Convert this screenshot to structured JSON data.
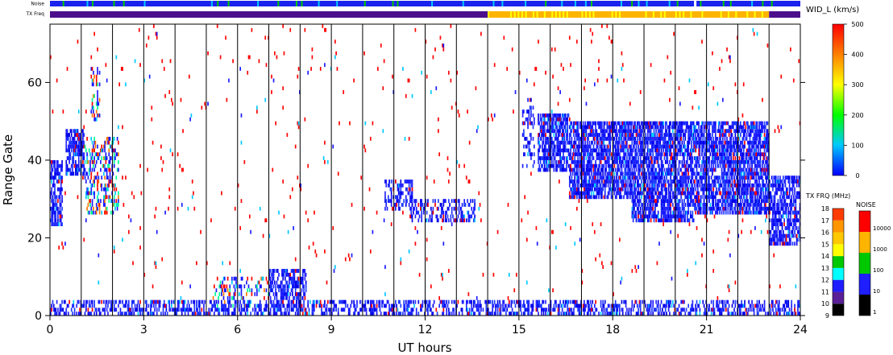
{
  "chart_data": {
    "type": "heatmap",
    "title": "",
    "xlabel": "UT hours",
    "ylabel": "Range Gate",
    "xlim": [
      0,
      24
    ],
    "ylim": [
      0,
      75
    ],
    "xticks": [
      "0",
      "3",
      "6",
      "9",
      "12",
      "15",
      "18",
      "21",
      "24"
    ],
    "yticks": [
      "0",
      "20",
      "40",
      "60"
    ],
    "grid_hours": [
      1,
      2,
      3,
      4,
      5,
      6,
      7,
      8,
      9,
      10,
      11,
      12,
      13,
      14,
      15,
      16,
      17,
      18,
      19,
      20,
      21,
      22,
      23
    ],
    "strip_labels": {
      "noise": "Noise",
      "txfreq": "TX Freq"
    },
    "noise_strip_color": "#1a22ee",
    "txfreq_strip": [
      {
        "from": 0,
        "to": 14,
        "color": "#4b0f8c"
      },
      {
        "from": 14,
        "to": 23,
        "color": "#ffb400"
      },
      {
        "from": 23,
        "to": 24,
        "color": "#4b0f8c"
      }
    ],
    "width_colorbar": {
      "label": "WID_L (km/s)",
      "range": [
        0,
        500
      ],
      "ticks": [
        "0",
        "100",
        "200",
        "300",
        "400",
        "500"
      ],
      "stops": [
        "#0000ff",
        "#00c8ff",
        "#00ff00",
        "#ffff00",
        "#ff8000",
        "#ff0000"
      ]
    },
    "txfreq_colorbar": {
      "label": "TX FRQ (MHz)",
      "ticks": [
        "9",
        "10",
        "11",
        "12",
        "13",
        "14",
        "15",
        "16",
        "17",
        "18"
      ],
      "colors": [
        "#000000",
        "#5a1f96",
        "#1e1eff",
        "#00ffff",
        "#00c800",
        "#ffff00",
        "#ffc800",
        "#ff9600",
        "#ff3c00"
      ]
    },
    "noise_colorbar": {
      "label": "NOISE",
      "ticks": [
        "1",
        "10",
        "100",
        "1000",
        "10000"
      ],
      "colors": [
        "#000000",
        "#1e1eff",
        "#00c800",
        "#ffb400",
        "#ff0000"
      ]
    },
    "scatter_regions": [
      {
        "t0": 0.0,
        "t1": 0.4,
        "g0": 23,
        "g1": 40,
        "density": 0.65,
        "color": "blue"
      },
      {
        "t0": 0.5,
        "t1": 1.1,
        "g0": 36,
        "g1": 48,
        "density": 0.7,
        "color": "blue"
      },
      {
        "t0": 1.1,
        "t1": 2.2,
        "g0": 26,
        "g1": 46,
        "density": 0.35,
        "color": "mixed"
      },
      {
        "t0": 1.3,
        "t1": 1.6,
        "g0": 50,
        "g1": 64,
        "density": 0.3,
        "color": "mixed"
      },
      {
        "t0": 5.2,
        "t1": 7.0,
        "g0": 2,
        "g1": 10,
        "density": 0.25,
        "color": "mixed"
      },
      {
        "t0": 7.0,
        "t1": 8.2,
        "g0": 2,
        "g1": 12,
        "density": 0.55,
        "color": "blue"
      },
      {
        "t0": 10.7,
        "t1": 11.6,
        "g0": 27,
        "g1": 35,
        "density": 0.45,
        "color": "blue"
      },
      {
        "t0": 11.5,
        "t1": 13.6,
        "g0": 24,
        "g1": 30,
        "density": 0.35,
        "color": "blue"
      },
      {
        "t0": 15.1,
        "t1": 15.5,
        "g0": 38,
        "g1": 56,
        "density": 0.3,
        "color": "blue"
      },
      {
        "t0": 15.6,
        "t1": 16.6,
        "g0": 37,
        "g1": 52,
        "density": 0.7,
        "color": "blue"
      },
      {
        "t0": 16.6,
        "t1": 18.6,
        "g0": 30,
        "g1": 50,
        "density": 0.75,
        "color": "blue"
      },
      {
        "t0": 18.6,
        "t1": 20.6,
        "g0": 24,
        "g1": 50,
        "density": 0.7,
        "color": "blue"
      },
      {
        "t0": 20.6,
        "t1": 23.0,
        "g0": 26,
        "g1": 50,
        "density": 0.7,
        "color": "blue"
      },
      {
        "t0": 23.0,
        "t1": 24.0,
        "g0": 18,
        "g1": 36,
        "density": 0.65,
        "color": "blue"
      },
      {
        "t0": 0.0,
        "t1": 24.0,
        "g0": 0,
        "g1": 4,
        "density": 0.45,
        "color": "blue"
      },
      {
        "t0": 0.0,
        "t1": 24.0,
        "g0": 0,
        "g1": 75,
        "density": 0.012,
        "color": "red"
      }
    ]
  }
}
